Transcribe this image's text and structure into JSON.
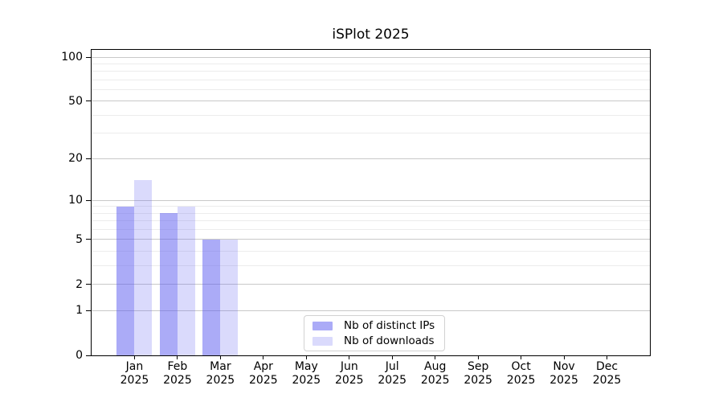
{
  "title": "iSPlot 2025",
  "chart_data": {
    "type": "bar",
    "title": "iSPlot 2025",
    "categories": [
      "Jan",
      "Feb",
      "Mar",
      "Apr",
      "May",
      "Jun",
      "Jul",
      "Aug",
      "Sep",
      "Oct",
      "Nov",
      "Dec"
    ],
    "x_tick_year": "2025",
    "series": [
      {
        "name": "Nb of distinct IPs",
        "color": "#5757f0",
        "alpha": 0.5,
        "values": [
          9,
          8,
          5,
          0,
          0,
          0,
          0,
          0,
          0,
          0,
          0,
          0
        ]
      },
      {
        "name": "Nb of downloads",
        "color": "#5757f0",
        "alpha": 0.22,
        "values": [
          14,
          9,
          5,
          0,
          0,
          0,
          0,
          0,
          0,
          0,
          0,
          0
        ]
      }
    ],
    "y_axis": {
      "scale": "log1p",
      "min": 0,
      "max": 112,
      "major_ticks": [
        0,
        1,
        2,
        5,
        10,
        20,
        50,
        100
      ],
      "minor_ticks": [
        3,
        4,
        6,
        7,
        8,
        9,
        30,
        40,
        60,
        70,
        80,
        90
      ]
    },
    "x_axis": {
      "tick_labels_two_lines": true
    },
    "legend": {
      "position": "lower center"
    },
    "grid": {
      "horizontal_major": true,
      "horizontal_minor": true,
      "major_color": "#c9c9c9",
      "minor_color": "#ececec"
    },
    "background_color": "#ffffff"
  }
}
